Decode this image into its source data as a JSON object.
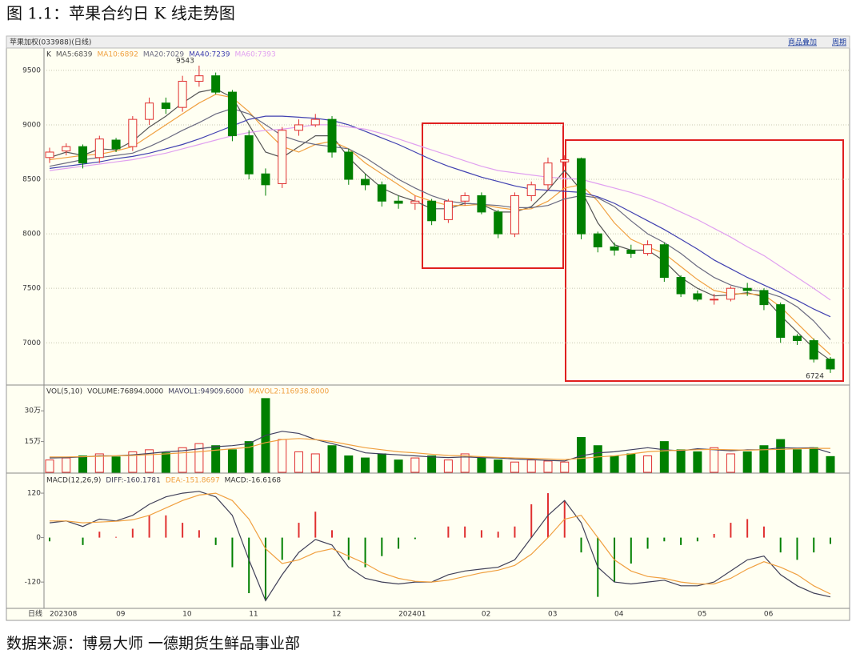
{
  "title": "图 1.1：苹果合约日 K 线走势图",
  "source": "数据来源：博易大师 一德期货生鲜品事业部",
  "header": {
    "symbol": "苹果加权(033988)(日线)",
    "links": [
      "商品叠加",
      "周期"
    ]
  },
  "chart_data": [
    {
      "type": "candlestick",
      "label": "K",
      "x_axis_label": "日线",
      "categories": [
        "202308",
        null,
        null,
        null,
        "09",
        null,
        null,
        null,
        "10",
        null,
        null,
        null,
        "11",
        null,
        null,
        null,
        null,
        "12",
        null,
        null,
        null,
        "202401",
        null,
        null,
        null,
        null,
        "02",
        null,
        null,
        null,
        "03",
        null,
        null,
        null,
        "04",
        null,
        null,
        null,
        null,
        "05",
        null,
        null,
        null,
        "06",
        null,
        null,
        null,
        null
      ],
      "open": [
        8700,
        8760,
        8800,
        8700,
        8860,
        8800,
        9050,
        9200,
        9160,
        9400,
        9450,
        9300,
        8900,
        8550,
        8460,
        8950,
        9000,
        9050,
        8750,
        8500,
        8450,
        8300,
        8280,
        8300,
        8130,
        8300,
        8350,
        8200,
        8000,
        8350,
        8450,
        8660,
        8690,
        8000,
        7880,
        7850,
        7820,
        7900,
        7600,
        7450,
        7400,
        7400,
        7500,
        7480,
        7350,
        7060,
        7020,
        6850
      ],
      "high": [
        8790,
        8830,
        8820,
        8900,
        8880,
        9080,
        9250,
        9250,
        9450,
        9543,
        9480,
        9320,
        8950,
        8600,
        8980,
        9050,
        9100,
        9080,
        8780,
        8550,
        8480,
        8350,
        8350,
        8320,
        8320,
        8380,
        8380,
        8220,
        8380,
        8480,
        8700,
        8720,
        8700,
        8020,
        7920,
        7900,
        7940,
        7920,
        7620,
        7480,
        7450,
        7520,
        7550,
        7500,
        7370,
        7080,
        7040,
        6870
      ],
      "low": [
        8650,
        8720,
        8600,
        8650,
        8750,
        8760,
        9000,
        9100,
        9120,
        9350,
        9280,
        8850,
        8500,
        8350,
        8420,
        8900,
        8980,
        8700,
        8450,
        8400,
        8250,
        8230,
        8220,
        8080,
        8100,
        8260,
        8180,
        7960,
        7970,
        8300,
        8400,
        8620,
        7950,
        7830,
        7800,
        7780,
        7800,
        7560,
        7420,
        7380,
        7350,
        7380,
        7430,
        7300,
        7000,
        6980,
        6820,
        6724
      ],
      "close": [
        8750,
        8800,
        8650,
        8870,
        8780,
        9050,
        9200,
        9150,
        9400,
        9450,
        9300,
        8900,
        8550,
        8450,
        8950,
        9000,
        9050,
        8750,
        8500,
        8450,
        8300,
        8280,
        8300,
        8120,
        8300,
        8350,
        8200,
        8000,
        8350,
        8450,
        8650,
        8680,
        8000,
        7880,
        7850,
        7820,
        7900,
        7600,
        7450,
        7400,
        7400,
        7500,
        7480,
        7350,
        7050,
        7020,
        6850,
        6760
      ],
      "up_color": "#e03030",
      "down_color": "#008000",
      "series": [
        {
          "name": "MA5:6839",
          "color": "#555555",
          "values": [
            8700,
            8750,
            8720,
            8780,
            8770,
            8850,
            8980,
            9080,
            9200,
            9300,
            9330,
            9250,
            9000,
            8750,
            8700,
            8800,
            8900,
            8900,
            8700,
            8550,
            8420,
            8350,
            8300,
            8230,
            8230,
            8280,
            8270,
            8200,
            8200,
            8250,
            8400,
            8580,
            8400,
            8100,
            7900,
            7850,
            7850,
            7750,
            7600,
            7500,
            7430,
            7440,
            7460,
            7420,
            7250,
            7100,
            6950,
            6839
          ]
        },
        {
          "name": "MA10:6892",
          "color": "#f0a040",
          "values": [
            8680,
            8700,
            8720,
            8730,
            8760,
            8800,
            8900,
            9000,
            9100,
            9200,
            9280,
            9250,
            9120,
            8950,
            8800,
            8750,
            8820,
            8850,
            8780,
            8650,
            8550,
            8450,
            8350,
            8300,
            8260,
            8260,
            8270,
            8240,
            8220,
            8230,
            8300,
            8420,
            8450,
            8300,
            8100,
            7950,
            7880,
            7820,
            7700,
            7580,
            7480,
            7450,
            7450,
            7440,
            7330,
            7180,
            7030,
            6892
          ]
        },
        {
          "name": "MA20:7029",
          "color": "#6a6a80",
          "values": [
            8620,
            8650,
            8680,
            8700,
            8720,
            8740,
            8800,
            8870,
            8950,
            9020,
            9100,
            9150,
            9100,
            9000,
            8900,
            8850,
            8820,
            8800,
            8780,
            8700,
            8600,
            8500,
            8420,
            8350,
            8300,
            8280,
            8270,
            8260,
            8240,
            8240,
            8260,
            8320,
            8350,
            8330,
            8250,
            8120,
            8000,
            7920,
            7820,
            7700,
            7600,
            7530,
            7490,
            7470,
            7420,
            7330,
            7200,
            7029
          ]
        },
        {
          "name": "MA40:7239",
          "color": "#4040b0",
          "values": [
            8600,
            8620,
            8640,
            8660,
            8690,
            8710,
            8740,
            8780,
            8820,
            8870,
            8930,
            8990,
            9050,
            9080,
            9080,
            9070,
            9060,
            9040,
            9000,
            8940,
            8880,
            8820,
            8750,
            8680,
            8620,
            8570,
            8520,
            8480,
            8440,
            8410,
            8400,
            8390,
            8380,
            8340,
            8280,
            8200,
            8120,
            8040,
            7950,
            7860,
            7760,
            7680,
            7600,
            7530,
            7460,
            7390,
            7310,
            7239
          ]
        },
        {
          "name": "MA60:7393",
          "color": "#e0a0f0",
          "values": [
            8580,
            8600,
            8620,
            8640,
            8660,
            8680,
            8710,
            8740,
            8780,
            8820,
            8860,
            8900,
            8930,
            8950,
            8960,
            8980,
            9000,
            9000,
            8980,
            8960,
            8920,
            8870,
            8820,
            8770,
            8720,
            8670,
            8620,
            8580,
            8560,
            8540,
            8520,
            8510,
            8500,
            8460,
            8420,
            8380,
            8330,
            8270,
            8200,
            8130,
            8050,
            7970,
            7880,
            7800,
            7700,
            7600,
            7500,
            7393
          ]
        }
      ],
      "ylim": [
        6620,
        9690
      ],
      "yticks": [
        7000,
        7500,
        8000,
        8500,
        9000,
        9500
      ],
      "grid": true
    },
    {
      "type": "bar",
      "label": "VOL(5,10)",
      "name": "VOLUME:76894.0000",
      "values": [
        60000,
        70000,
        80000,
        90000,
        75000,
        100000,
        110000,
        95000,
        120000,
        140000,
        130000,
        110000,
        150000,
        360000,
        160000,
        100000,
        90000,
        130000,
        80000,
        70000,
        90000,
        60000,
        70000,
        80000,
        60000,
        90000,
        70000,
        60000,
        50000,
        60000,
        55000,
        50000,
        170000,
        130000,
        80000,
        90000,
        80000,
        150000,
        110000,
        100000,
        120000,
        90000,
        100000,
        130000,
        160000,
        110000,
        120000,
        76894
      ],
      "up_color": "#e03030",
      "down_color": "#008000",
      "series": [
        {
          "name": "MAVOL1:94909.6000",
          "color": "#404060",
          "values": [
            70000,
            72000,
            75000,
            80000,
            80000,
            85000,
            92000,
            100000,
            105000,
            115000,
            125000,
            130000,
            140000,
            180000,
            200000,
            190000,
            160000,
            140000,
            120000,
            95000,
            90000,
            85000,
            80000,
            75000,
            72000,
            75000,
            72000,
            70000,
            65000,
            62000,
            58000,
            55000,
            80000,
            95000,
            100000,
            110000,
            120000,
            110000,
            105000,
            115000,
            110000,
            105000,
            110000,
            110000,
            120000,
            118000,
            120000,
            94910
          ]
        },
        {
          "name": "MAVOL2:116938.8000",
          "color": "#f0a040",
          "values": [
            75000,
            75000,
            76000,
            78000,
            80000,
            82000,
            86000,
            90000,
            95000,
            100000,
            108000,
            115000,
            122000,
            145000,
            160000,
            165000,
            160000,
            150000,
            135000,
            120000,
            110000,
            100000,
            95000,
            88000,
            82000,
            80000,
            76000,
            73000,
            70000,
            68000,
            65000,
            62000,
            68000,
            75000,
            80000,
            90000,
            100000,
            105000,
            108000,
            110000,
            112000,
            110000,
            108000,
            110000,
            112000,
            115000,
            117000,
            116939
          ]
        }
      ],
      "ylim": [
        0,
        422000
      ],
      "yticks": [
        {
          "value": 150000,
          "label": "15万"
        },
        {
          "value": 300000,
          "label": "30万"
        }
      ],
      "grid": false
    },
    {
      "type": "macd",
      "label": "MACD(12,26,9)",
      "series": [
        {
          "name": "DIFF:-160.1781",
          "color": "#404058",
          "values": [
            40,
            45,
            30,
            50,
            45,
            60,
            90,
            110,
            120,
            125,
            110,
            60,
            -60,
            -170,
            -100,
            -40,
            -5,
            -20,
            -80,
            -110,
            -120,
            -125,
            -120,
            -120,
            -100,
            -90,
            -85,
            -80,
            -60,
            0,
            60,
            100,
            40,
            -80,
            -120,
            -125,
            -120,
            -115,
            -130,
            -130,
            -120,
            -90,
            -60,
            -50,
            -100,
            -130,
            -150,
            -160
          ]
        },
        {
          "name": "DEA:-151.8697",
          "color": "#f0a040",
          "values": [
            45,
            45,
            40,
            42,
            44,
            48,
            60,
            80,
            100,
            115,
            120,
            100,
            50,
            -30,
            -70,
            -60,
            -40,
            -30,
            -50,
            -70,
            -95,
            -110,
            -118,
            -120,
            -115,
            -105,
            -95,
            -88,
            -75,
            -45,
            0,
            50,
            60,
            0,
            -60,
            -90,
            -105,
            -110,
            -120,
            -125,
            -125,
            -110,
            -85,
            -65,
            -80,
            -100,
            -130,
            -152
          ]
        }
      ],
      "bars": {
        "name": "MACD:-16.6168",
        "up_color": "#e03030",
        "down_color": "#008000",
        "values": [
          -10,
          0,
          -20,
          16,
          2,
          24,
          60,
          60,
          40,
          20,
          -20,
          -80,
          -150,
          -170,
          -60,
          40,
          70,
          20,
          -60,
          -80,
          -50,
          -30,
          -4,
          0,
          30,
          30,
          20,
          16,
          30,
          90,
          120,
          100,
          -40,
          -160,
          -120,
          -70,
          -30,
          -10,
          -20,
          -10,
          10,
          40,
          50,
          30,
          -40,
          -60,
          -40,
          -17
        ]
      },
      "ylim": [
        -191,
        172
      ],
      "yticks": [
        -120,
        0,
        120
      ],
      "grid": false
    }
  ]
}
